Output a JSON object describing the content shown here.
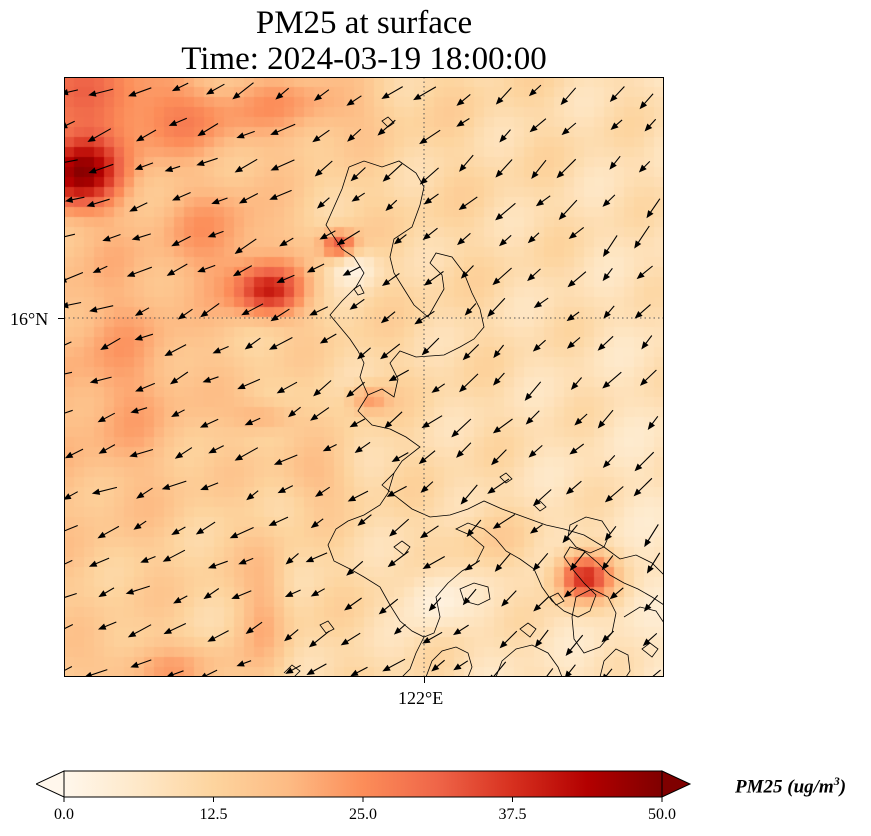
{
  "title": {
    "line1": "PM25 at surface",
    "line2": "Time: 2024-03-19 18:00:00"
  },
  "map": {
    "variable": "PM25",
    "gridlines": "dotted",
    "lat_tick_label": "16°N",
    "lon_tick_label": "122°E"
  },
  "colorbar": {
    "label_main": "PM25 (ug/m",
    "label_exp": "3",
    "label_close": ")",
    "min": 0.0,
    "max": 50.0,
    "extend": "both",
    "ticks": [
      "0.0",
      "12.5",
      "25.0",
      "37.5",
      "50.0"
    ],
    "colors": [
      "#fff7ec",
      "#fee8c8",
      "#fdd49e",
      "#fdbb84",
      "#fc8d59",
      "#ef6548",
      "#d7301f",
      "#b30000",
      "#7f0000"
    ]
  }
}
